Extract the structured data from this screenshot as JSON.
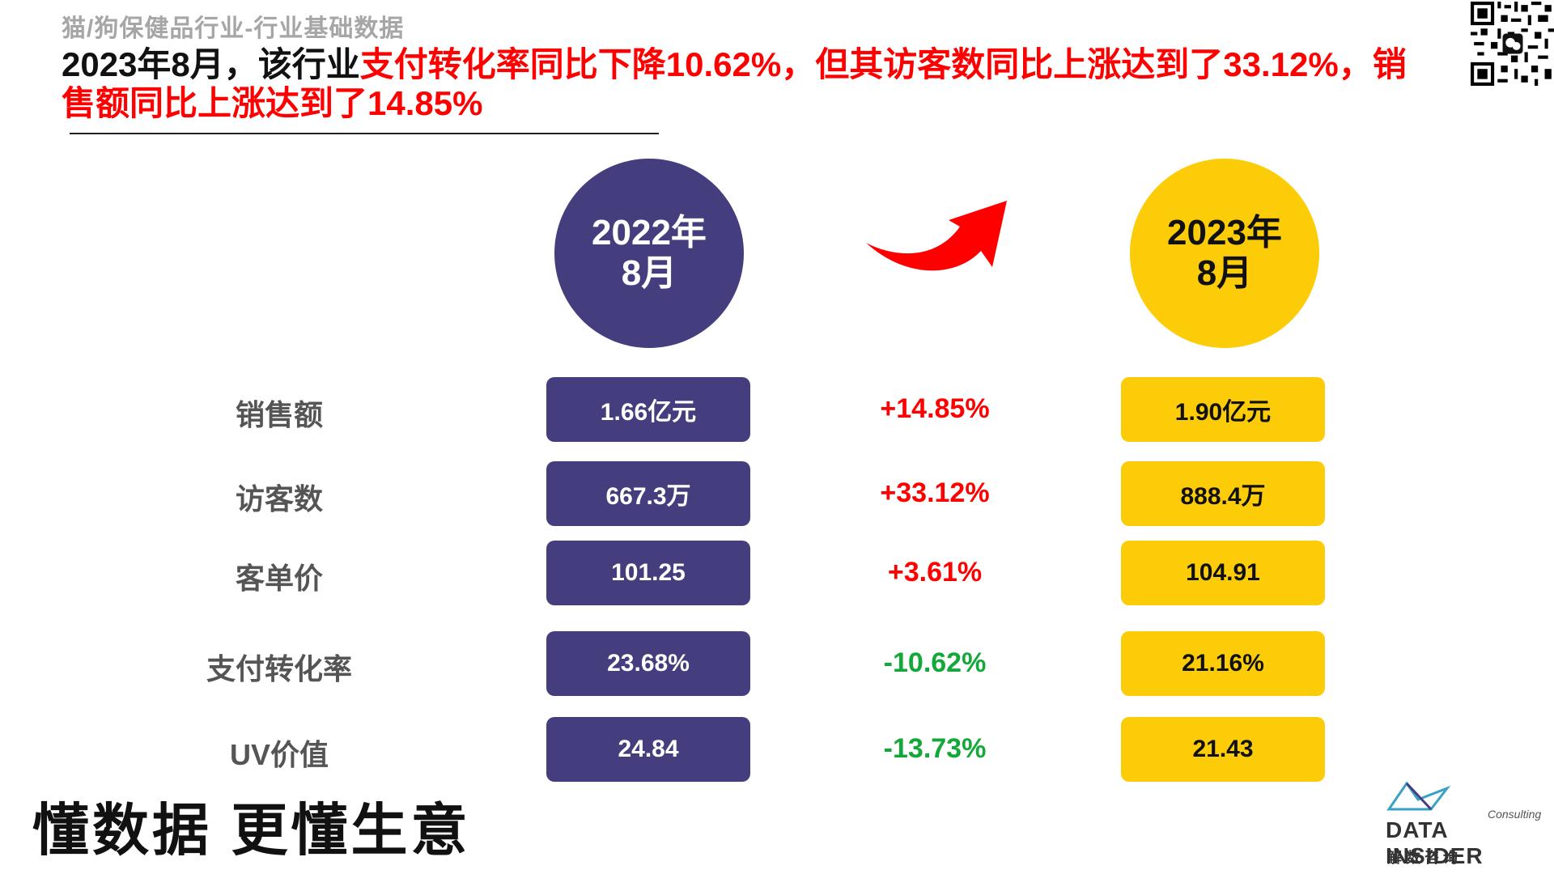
{
  "header": {
    "subtitle": "猫/狗保健品行业-行业基础数据",
    "headline_black_1": "2023年8月，该行业",
    "headline_red_1": "支付转化率同比下降10.62%，但其访客数同比上涨达到了33.12%，销售额同比上涨达到了14.85%"
  },
  "periods": {
    "left_year": "2022年",
    "left_month": "8月",
    "right_year": "2023年",
    "right_month": "8月"
  },
  "rows": [
    {
      "label": "销售额",
      "value_2022": "1.66亿元",
      "change": "+14.85%",
      "value_2023": "1.90亿元"
    },
    {
      "label": "访客数",
      "value_2022": "667.3万",
      "change": "+33.12%",
      "value_2023": "888.4万"
    },
    {
      "label": "客单价",
      "value_2022": "101.25",
      "change": "+3.61%",
      "value_2023": "104.91"
    },
    {
      "label": "支付转化率",
      "value_2022": "23.68%",
      "change": "-10.62%",
      "value_2023": "21.16%"
    },
    {
      "label": "UV价值",
      "value_2022": "24.84",
      "change": "-13.73%",
      "value_2023": "21.43"
    }
  ],
  "footer": {
    "slogan": "懂数据 更懂生意",
    "logo_consulting": "Consulting",
    "logo_brand": "DATA INSIDER",
    "logo_cn": "解数咨询"
  },
  "colors": {
    "purple": "#453e7e",
    "yellow": "#fbcc07",
    "red": "#ff0000",
    "green": "#14a83a"
  },
  "icons": {
    "qr": "qr-code-icon",
    "arrow": "red-curved-arrow-icon",
    "logo_mark": "data-insider-logo-icon"
  }
}
